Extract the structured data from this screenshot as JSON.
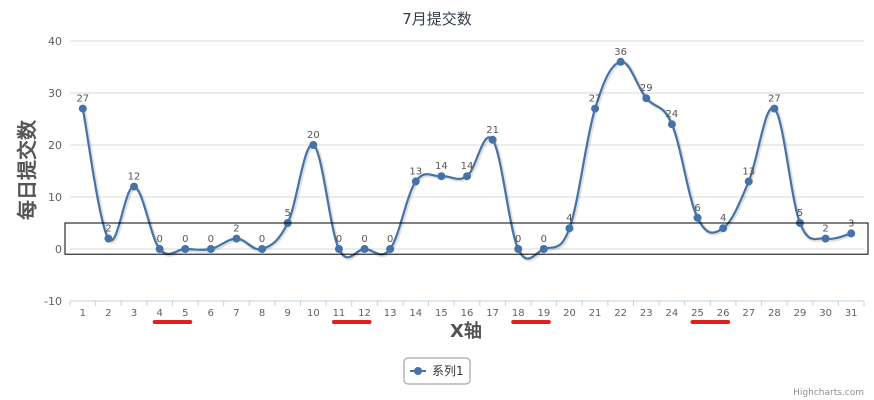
{
  "chart_data": {
    "type": "line",
    "title": "7月提交数",
    "xlabel": "X轴",
    "ylabel": "每日提交数",
    "ylim": [
      -10,
      40
    ],
    "yticks": [
      -10,
      0,
      10,
      20,
      30,
      40
    ],
    "categories": [
      "1",
      "2",
      "3",
      "4",
      "5",
      "6",
      "7",
      "8",
      "9",
      "10",
      "11",
      "12",
      "13",
      "14",
      "15",
      "16",
      "17",
      "18",
      "19",
      "20",
      "21",
      "22",
      "23",
      "24",
      "25",
      "26",
      "27",
      "28",
      "29",
      "30",
      "31"
    ],
    "series": [
      {
        "name": "系列1",
        "color": "#4572a7",
        "values": [
          27,
          2,
          12,
          0,
          0,
          0,
          2,
          0,
          5,
          20,
          0,
          0,
          0,
          13,
          14,
          14,
          21,
          0,
          0,
          4,
          27,
          36,
          29,
          24,
          6,
          4,
          13,
          27,
          5,
          2,
          3
        ]
      }
    ],
    "grid": true,
    "legend": "bottom-center",
    "credits": "Highcharts.com",
    "annotations": {
      "highlight_box": {
        "y_range": [
          -1,
          5
        ],
        "color": "#000000"
      },
      "underlined_categories": [
        [
          "4",
          "5"
        ],
        [
          "11",
          "12"
        ],
        [
          "18",
          "19"
        ],
        [
          "25",
          "26"
        ]
      ],
      "underline_color": "#e02020"
    }
  }
}
